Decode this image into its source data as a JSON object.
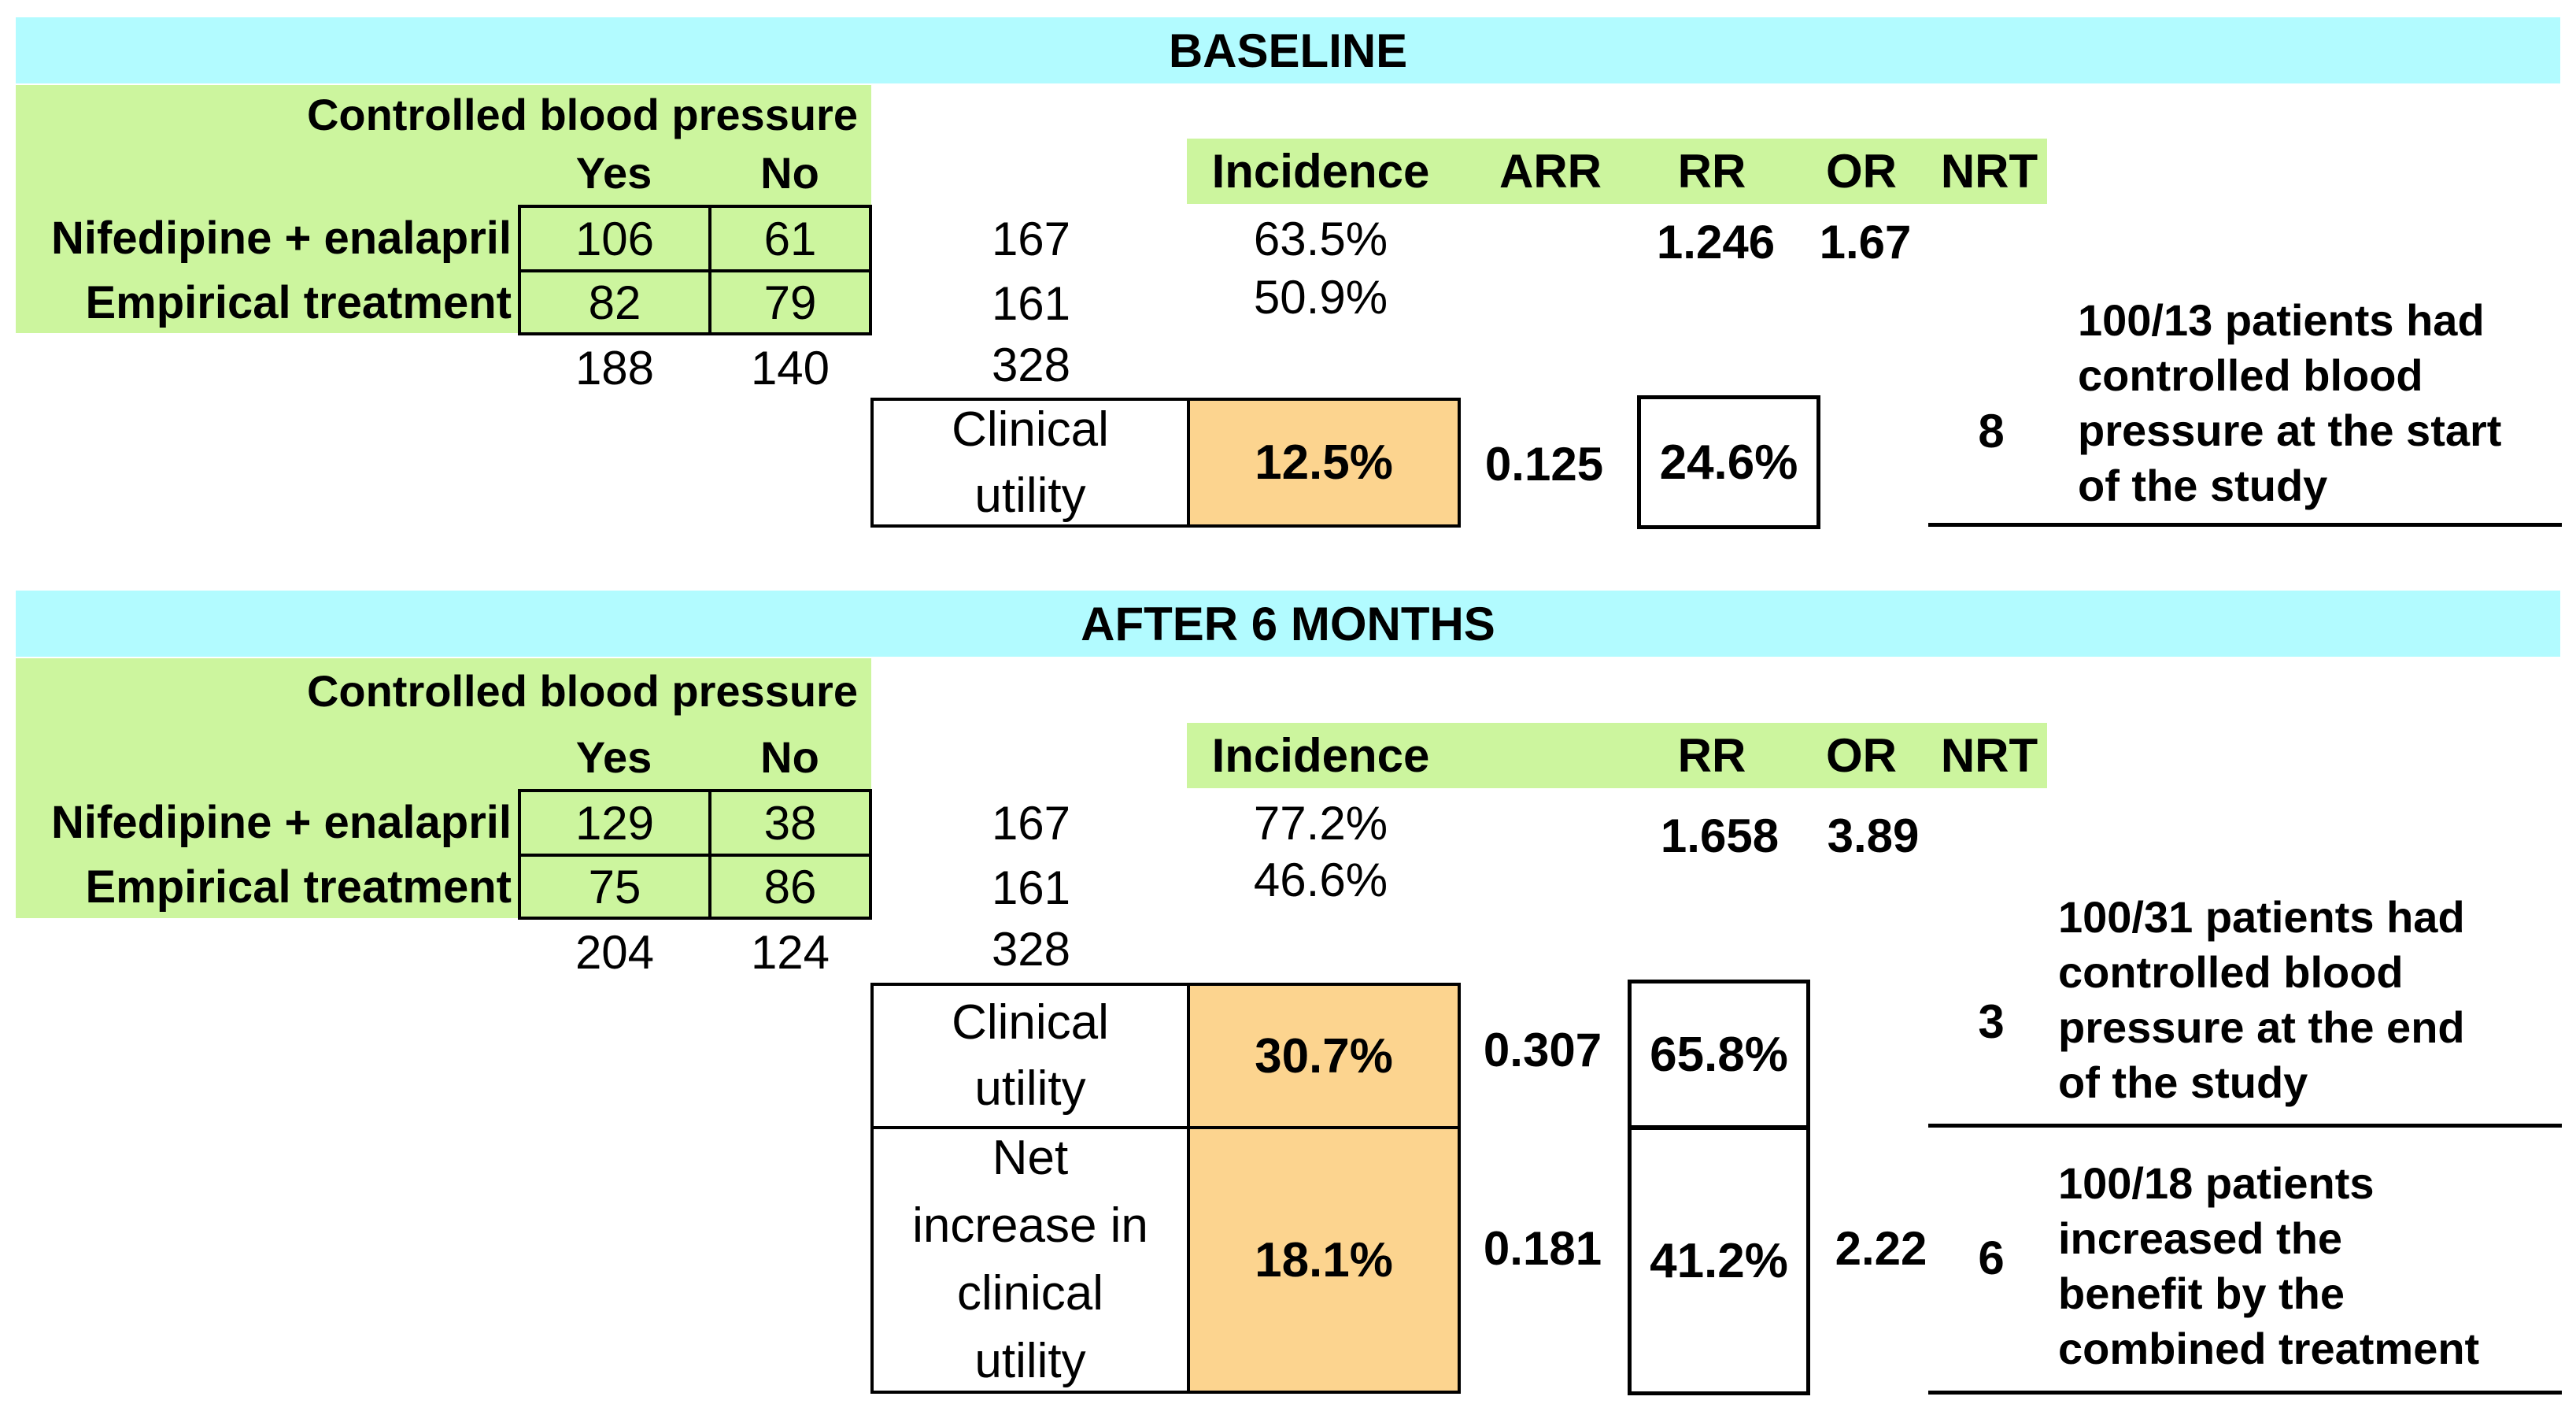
{
  "baseline": {
    "title": "BASELINE",
    "table_title": "Controlled blood pressure",
    "col_yes": "Yes",
    "col_no": "No",
    "rows": [
      {
        "label": "Nifedipine + enalapril",
        "yes": "106",
        "no": "61",
        "total": "167",
        "incidence": "63.5%"
      },
      {
        "label": "Empirical treatment",
        "yes": "82",
        "no": "79",
        "total": "161",
        "incidence": "50.9%"
      }
    ],
    "col_totals": {
      "yes": "188",
      "no": "140",
      "grand": "328"
    },
    "headers": {
      "incidence": "Incidence",
      "arr": "ARR",
      "rr": "RR",
      "or": "OR",
      "nrt": "NRT"
    },
    "rr": "1.246",
    "or": "1.67",
    "clinical_utility": {
      "label_line1": "Clinical",
      "label_line2": "utility",
      "pct": "12.5%",
      "arr": "0.125",
      "rrr": "24.6%"
    },
    "nrt_value": "8",
    "note": [
      "100/13 patients had",
      "controlled blood",
      "pressure at the start",
      "of the study"
    ]
  },
  "after": {
    "title": "AFTER 6 MONTHS",
    "table_title": "Controlled blood pressure",
    "col_yes": "Yes",
    "col_no": "No",
    "rows": [
      {
        "label": "Nifedipine + enalapril",
        "yes": "129",
        "no": "38",
        "total": "167",
        "incidence": "77.2%"
      },
      {
        "label": "Empirical treatment",
        "yes": "75",
        "no": "86",
        "total": "161",
        "incidence": "46.6%"
      }
    ],
    "col_totals": {
      "yes": "204",
      "no": "124",
      "grand": "328"
    },
    "headers": {
      "incidence": "Incidence",
      "rr": "RR",
      "or": "OR",
      "nrt": "NRT"
    },
    "rr": "1.658",
    "or": "3.89",
    "clinical_utility": {
      "label_line1": "Clinical",
      "label_line2": "utility",
      "pct": "30.7%",
      "arr": "0.307",
      "rrr": "65.8%"
    },
    "nrt_value": "3",
    "note": [
      "100/31 patients had",
      "controlled blood",
      "pressure at the end",
      "of the study"
    ],
    "net_increase": {
      "label_lines": [
        "Net",
        "increase in",
        "clinical",
        "utility"
      ],
      "pct": "18.1%",
      "arr": "0.181",
      "rrr": "41.2%",
      "or": "2.22"
    },
    "net_nrt_value": "6",
    "net_note": [
      "100/18 patients",
      "increased the",
      "benefit by the",
      "combined treatment"
    ]
  }
}
